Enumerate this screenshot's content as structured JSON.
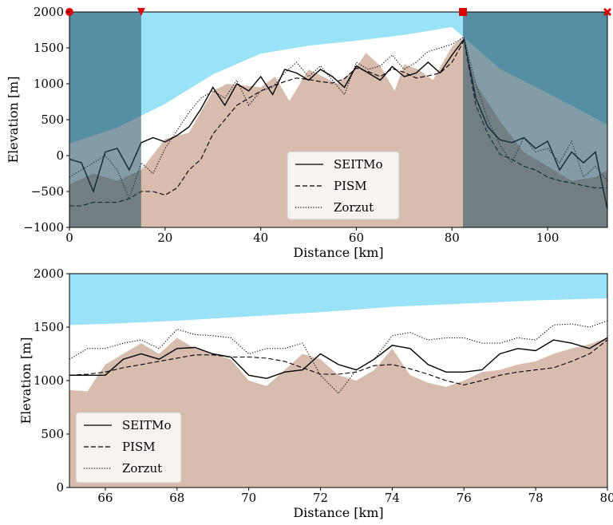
{
  "chart_data": [
    {
      "type": "line",
      "xlabel": "Distance [km]",
      "ylabel": "Elevation [m]",
      "xlim": [
        0,
        112.5
      ],
      "ylim": [
        -1000,
        2000
      ],
      "xticks": [
        0,
        20,
        40,
        60,
        80,
        100
      ],
      "yticks": [
        -1000,
        -500,
        0,
        500,
        1000,
        1500,
        2000
      ],
      "grid": false,
      "legend_position": "lower-center",
      "legend": [
        "SEITMo",
        "PISM",
        "Zorzut"
      ],
      "shaded_regions": [
        {
          "x": [
            0,
            15
          ],
          "color": "#1f4a5c"
        },
        {
          "x": [
            82.3,
            112.5
          ],
          "color": "#1f4a5c"
        }
      ],
      "markers": [
        {
          "x": 0,
          "y": 2000,
          "shape": "circle",
          "color": "#dd0000"
        },
        {
          "x": 15,
          "y": 2000,
          "shape": "triangle-down",
          "color": "#dd0000"
        },
        {
          "x": 82.3,
          "y": 2000,
          "shape": "square",
          "color": "#dd0000"
        },
        {
          "x": 112.5,
          "y": 2000,
          "shape": "x",
          "color": "#dd0000"
        }
      ],
      "fills": [
        {
          "name": "sky",
          "color": "#99e2f8",
          "x": [
            0,
            10,
            20,
            30,
            40,
            50,
            60,
            70,
            80,
            90,
            100,
            112.5
          ],
          "y": [
            170,
            390,
            720,
            1130,
            1420,
            1530,
            1600,
            1680,
            1790,
            1210,
            870,
            430
          ]
        },
        {
          "name": "ice",
          "color": "#ffffff",
          "x": [
            0,
            10,
            20,
            30,
            40,
            50,
            60,
            70,
            80,
            90,
            100,
            112.5
          ],
          "y": [
            170,
            390,
            720,
            1130,
            1420,
            1530,
            1600,
            1680,
            1790,
            1210,
            870,
            430
          ]
        },
        {
          "name": "bedrock",
          "color": "#d8bcae",
          "x": [
            0,
            5,
            10,
            15,
            20,
            25,
            30,
            33,
            36,
            40,
            43,
            46,
            50,
            53,
            56,
            60,
            62,
            65,
            68,
            70,
            73,
            76,
            80,
            82,
            85,
            90,
            95,
            100,
            105,
            110,
            112.5
          ],
          "y": [
            -400,
            -250,
            -350,
            -200,
            230,
            320,
            900,
            1000,
            980,
            950,
            1100,
            760,
            1200,
            1100,
            1000,
            1230,
            1430,
            1250,
            900,
            1270,
            1200,
            1050,
            1520,
            1640,
            1000,
            480,
            50,
            -150,
            -350,
            -300,
            -200
          ]
        }
      ],
      "x": [
        0,
        2.5,
        5,
        7.5,
        10,
        12.5,
        15,
        17.5,
        20,
        22.5,
        25,
        27.5,
        30,
        32.5,
        35,
        37.5,
        40,
        42.5,
        45,
        47.5,
        50,
        52.5,
        55,
        57.5,
        60,
        62.5,
        65,
        67.5,
        70,
        72.5,
        75,
        77.5,
        80,
        82.5,
        85,
        87.5,
        90,
        92.5,
        95,
        97.5,
        100,
        102.5,
        105,
        107.5,
        110,
        112.5
      ],
      "series": [
        {
          "name": "SEITMo",
          "style": "solid",
          "values": [
            -50,
            -100,
            -500,
            50,
            100,
            -200,
            180,
            250,
            190,
            280,
            400,
            650,
            950,
            700,
            1000,
            900,
            1100,
            850,
            1200,
            1150,
            1050,
            1200,
            1100,
            950,
            1250,
            1150,
            1050,
            1240,
            1100,
            1150,
            1300,
            1150,
            1400,
            1620,
            800,
            400,
            220,
            180,
            250,
            100,
            200,
            -200,
            50,
            -100,
            50,
            -750
          ]
        },
        {
          "name": "PISM",
          "style": "dashed",
          "values": [
            -700,
            -700,
            -650,
            -650,
            -650,
            -600,
            -500,
            -500,
            -550,
            -450,
            -200,
            -50,
            300,
            500,
            700,
            800,
            900,
            970,
            1030,
            1080,
            1060,
            1030,
            1010,
            1070,
            1220,
            1170,
            1100,
            1210,
            1160,
            1080,
            1110,
            1150,
            1300,
            1600,
            700,
            300,
            20,
            -50,
            -150,
            -200,
            -300,
            -350,
            -380,
            -420,
            -450,
            -450
          ]
        },
        {
          "name": "Zorzut",
          "style": "dotted",
          "values": [
            -300,
            -200,
            -100,
            0,
            -200,
            -600,
            -100,
            -250,
            100,
            350,
            600,
            800,
            900,
            800,
            1050,
            700,
            900,
            950,
            1150,
            1300,
            1100,
            1250,
            1050,
            850,
            1300,
            1200,
            1250,
            1400,
            1200,
            1300,
            1450,
            1500,
            1550,
            1650,
            1000,
            500,
            150,
            -100,
            250,
            50,
            100,
            -100,
            200,
            -300,
            -150,
            -350
          ]
        }
      ]
    },
    {
      "type": "line",
      "xlabel": "Distance [km]",
      "ylabel": "Elevation [m]",
      "xlim": [
        65,
        80
      ],
      "ylim": [
        0,
        2000
      ],
      "xticks": [
        66,
        68,
        70,
        72,
        74,
        76,
        78,
        80
      ],
      "yticks": [
        0,
        500,
        1000,
        1500,
        2000
      ],
      "grid": false,
      "legend_position": "lower-left",
      "legend": [
        "SEITMo",
        "PISM",
        "Zorzut"
      ],
      "fills": [
        {
          "name": "sky",
          "color": "#99e2f8",
          "x": [
            65,
            66,
            68,
            70,
            72,
            74,
            76,
            78,
            80
          ],
          "y": [
            1520,
            1530,
            1560,
            1600,
            1640,
            1690,
            1720,
            1750,
            1770
          ]
        },
        {
          "name": "ice",
          "color": "#ffffff",
          "x": [
            65,
            66,
            68,
            70,
            72,
            74,
            76,
            78,
            80
          ],
          "y": [
            1520,
            1530,
            1560,
            1600,
            1640,
            1690,
            1720,
            1750,
            1770
          ]
        },
        {
          "name": "bedrock",
          "color": "#d8bcae",
          "x": [
            65,
            65.5,
            66,
            66.5,
            67,
            67.5,
            68,
            68.5,
            69,
            69.5,
            70,
            70.5,
            71,
            71.5,
            72,
            72.5,
            73,
            73.5,
            74,
            74.5,
            75,
            75.5,
            76,
            76.5,
            77,
            77.5,
            78,
            78.5,
            79,
            79.5,
            80
          ],
          "y": [
            910,
            900,
            1150,
            1250,
            1350,
            1250,
            1400,
            1300,
            1250,
            1200,
            1000,
            950,
            1100,
            1250,
            1200,
            1050,
            1000,
            1100,
            1300,
            1050,
            980,
            940,
            1000,
            1080,
            1100,
            1150,
            1180,
            1250,
            1300,
            1340,
            1400
          ]
        }
      ],
      "x": [
        65,
        65.5,
        66,
        66.5,
        67,
        67.5,
        68,
        68.5,
        69,
        69.5,
        70,
        70.5,
        71,
        71.5,
        72,
        72.5,
        73,
        73.5,
        74,
        74.5,
        75,
        75.5,
        76,
        76.5,
        77,
        77.5,
        78,
        78.5,
        79,
        79.5,
        80
      ],
      "series": [
        {
          "name": "SEITMo",
          "style": "solid",
          "values": [
            1050,
            1050,
            1050,
            1200,
            1250,
            1200,
            1300,
            1310,
            1250,
            1220,
            1050,
            1020,
            1080,
            1100,
            1250,
            1150,
            1100,
            1200,
            1330,
            1300,
            1150,
            1080,
            1080,
            1100,
            1250,
            1300,
            1280,
            1380,
            1350,
            1300,
            1400
          ]
        },
        {
          "name": "PISM",
          "style": "dashed",
          "values": [
            1050,
            1060,
            1080,
            1120,
            1150,
            1180,
            1210,
            1240,
            1240,
            1220,
            1220,
            1210,
            1180,
            1120,
            1060,
            1060,
            1080,
            1140,
            1150,
            1110,
            1060,
            1000,
            960,
            1000,
            1050,
            1080,
            1100,
            1120,
            1180,
            1250,
            1380
          ]
        },
        {
          "name": "Zorzut",
          "style": "dotted",
          "values": [
            1200,
            1300,
            1300,
            1350,
            1380,
            1300,
            1480,
            1430,
            1420,
            1400,
            1250,
            1300,
            1300,
            1350,
            1050,
            880,
            1100,
            1200,
            1420,
            1450,
            1380,
            1400,
            1400,
            1350,
            1350,
            1400,
            1380,
            1520,
            1530,
            1500,
            1560
          ]
        }
      ]
    }
  ]
}
